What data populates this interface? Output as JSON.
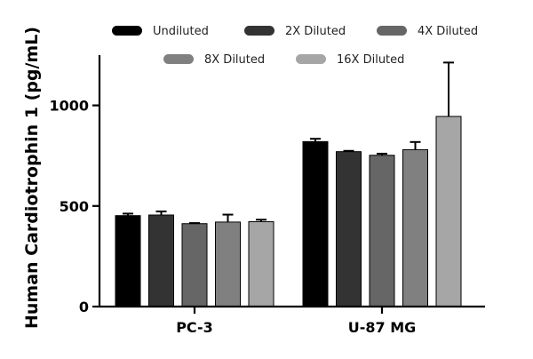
{
  "chart_data": {
    "type": "bar",
    "ylabel": "Human Cardiotrophin 1 (pg/mL)",
    "xlabel": "",
    "ylim": [
      0,
      1250
    ],
    "yticks": [
      0,
      500,
      1000
    ],
    "categories": [
      "PC-3",
      "U-87 MG"
    ],
    "legend_position": "top",
    "grid": false,
    "series": [
      {
        "name": "Undiluted",
        "color": "#000000",
        "values": [
          452,
          820
        ],
        "errors": [
          10,
          14
        ]
      },
      {
        "name": "2X Diluted",
        "color": "#333333",
        "values": [
          455,
          770
        ],
        "errors": [
          18,
          4
        ]
      },
      {
        "name": "4X Diluted",
        "color": "#666666",
        "values": [
          412,
          752
        ],
        "errors": [
          3,
          8
        ]
      },
      {
        "name": "8X Diluted",
        "color": "#808080",
        "values": [
          420,
          780
        ],
        "errors": [
          37,
          38
        ]
      },
      {
        "name": "16X Diluted",
        "color": "#a6a6a6",
        "values": [
          422,
          945
        ],
        "errors": [
          10,
          268
        ]
      }
    ]
  }
}
